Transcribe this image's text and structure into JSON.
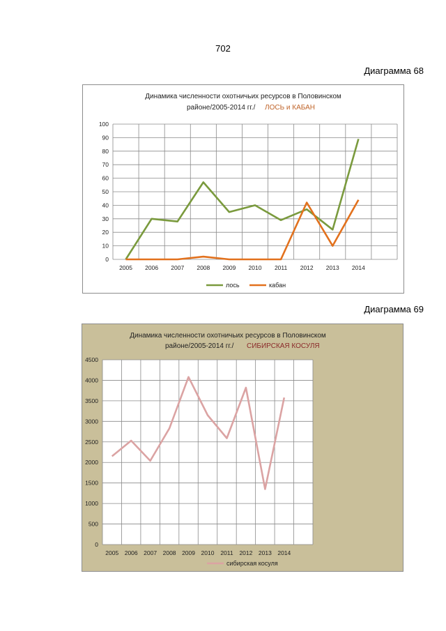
{
  "page": {
    "number": "702",
    "diagram68_label": "Диаграмма 68",
    "diagram69_label": "Диаграмма 69"
  },
  "colors": {
    "elk": "#7a9a3d",
    "boar": "#e2711d",
    "roe": "#dba3a3",
    "chart2_bg": "#c9bf9a",
    "title_accent_1": "#c0642a",
    "title_accent_2": "#8b2a2a"
  },
  "chart_data": [
    {
      "type": "line",
      "title_line1": "Динамика численности охотничьих ресурсов в Половинском",
      "title_line2": "районе/2005-2014 гг./",
      "title_accent": "ЛОСЬ и КАБАН",
      "x": [
        "2005",
        "2006",
        "2007",
        "2008",
        "2009",
        "2010",
        "2011",
        "2012",
        "2013",
        "2014"
      ],
      "ylim": [
        0,
        100
      ],
      "yticks": [
        0,
        10,
        20,
        30,
        40,
        50,
        60,
        70,
        80,
        90,
        100
      ],
      "grid": true,
      "legend_position": "bottom",
      "series": [
        {
          "name": "лось",
          "values": [
            0,
            30,
            28,
            57,
            35,
            40,
            29,
            37,
            22,
            89
          ]
        },
        {
          "name": "кабан",
          "values": [
            0,
            0,
            0,
            2,
            0,
            0,
            0,
            42,
            10,
            44
          ]
        }
      ]
    },
    {
      "type": "line",
      "title_line1": "Динамика численности охотничьих ресурсов в Половинском",
      "title_line2": "районе/2005-2014 гг./",
      "title_accent": "СИБИРСКАЯ КОСУЛЯ",
      "x": [
        "2005",
        "2006",
        "2007",
        "2008",
        "2009",
        "2010",
        "2011",
        "2012",
        "2013",
        "2014"
      ],
      "ylim": [
        0,
        4500
      ],
      "yticks": [
        0,
        500,
        1000,
        1500,
        2000,
        2500,
        3000,
        3500,
        4000,
        4500
      ],
      "grid": true,
      "legend_position": "bottom",
      "series": [
        {
          "name": "сибирская косуля",
          "values": [
            2150,
            2530,
            2040,
            2830,
            4080,
            3150,
            2590,
            3820,
            1350,
            3580
          ]
        }
      ]
    }
  ]
}
